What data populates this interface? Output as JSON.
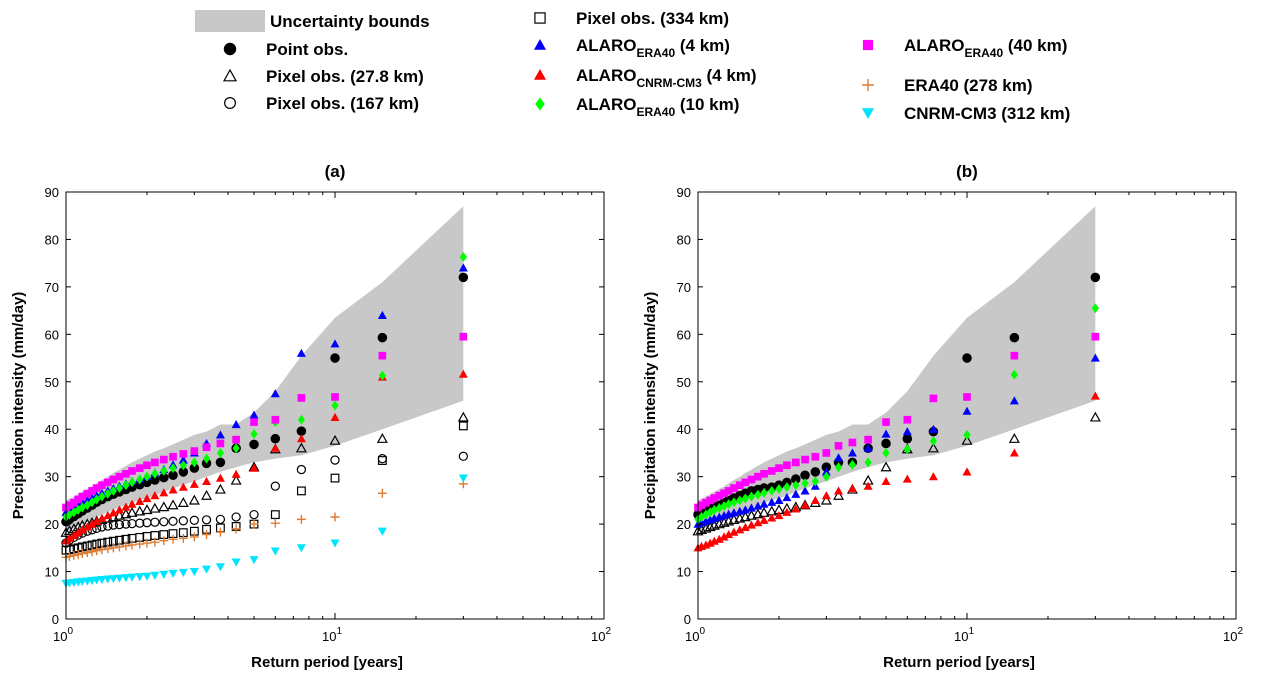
{
  "legend": {
    "entries": [
      {
        "key": "uncertainty",
        "label": "Uncertainty bounds",
        "marker": "band",
        "color": "#c8c8c8"
      },
      {
        "key": "point_obs",
        "label": "Point obs.",
        "marker": "circle-filled",
        "color": "#000000"
      },
      {
        "key": "pixel_27",
        "label": "Pixel obs. (27.8 km)",
        "marker": "triangle-open",
        "color": "#000000"
      },
      {
        "key": "pixel_167",
        "label": "Pixel obs. (167 km)",
        "marker": "circle-open",
        "color": "#000000"
      },
      {
        "key": "pixel_334",
        "label": "Pixel obs. (334 km)",
        "marker": "square-open",
        "color": "#000000"
      },
      {
        "key": "alaro_era40_4",
        "base": "ALARO",
        "sub": "ERA40",
        "suffix": " (4 km)",
        "marker": "triangle-filled",
        "color": "#0000ff"
      },
      {
        "key": "alaro_cnrm_4",
        "base": "ALARO",
        "sub": "CNRM-CM3",
        "suffix": " (4 km)",
        "marker": "triangle-filled",
        "color": "#ff0000"
      },
      {
        "key": "alaro_era40_10",
        "base": "ALARO",
        "sub": "ERA40",
        "suffix": " (10 km)",
        "marker": "diamond-filled",
        "color": "#00ff00"
      },
      {
        "key": "alaro_era40_40",
        "base": "ALARO",
        "sub": "ERA40",
        "suffix": " (40 km)",
        "marker": "square-filled",
        "color": "#ff00ff"
      },
      {
        "key": "era40_278",
        "label": "ERA40 (278 km)",
        "marker": "plus",
        "color": "#e07b30"
      },
      {
        "key": "cnrm_312",
        "label": "CNRM-CM3 (312 km)",
        "marker": "triangle-down-filled",
        "color": "#00e5ff"
      }
    ]
  },
  "chart_data": [
    {
      "type": "scatter",
      "title": "(a)",
      "xlabel": "Return period [years]",
      "ylabel": "Precipitation intensity (mm/day)",
      "xscale": "log",
      "xlim": [
        1,
        100
      ],
      "ylim": [
        0,
        90
      ],
      "x_ticks": [
        "10^0",
        "10^1",
        "10^2"
      ],
      "y_ticks": [
        0,
        10,
        20,
        30,
        40,
        50,
        60,
        70,
        80,
        90
      ],
      "grid": false,
      "x": [
        1.0,
        1.03,
        1.07,
        1.11,
        1.15,
        1.2,
        1.25,
        1.3,
        1.36,
        1.43,
        1.5,
        1.58,
        1.67,
        1.76,
        1.88,
        2.0,
        2.14,
        2.31,
        2.5,
        2.73,
        3.0,
        3.33,
        3.75,
        4.29,
        5.0,
        6.0,
        7.5,
        10.0,
        15.0,
        30.0
      ],
      "band": {
        "lower": [
          18.5,
          18.8,
          19.2,
          19.6,
          20.0,
          20.5,
          21.0,
          21.5,
          22.0,
          22.5,
          23.0,
          23.5,
          24.0,
          24.5,
          25.0,
          25.5,
          26.0,
          26.8,
          27.5,
          28.3,
          29.0,
          30.0,
          31.0,
          32.0,
          33.0,
          33.8,
          34.5,
          36.5,
          40.0,
          46.0
        ],
        "upper": [
          25.0,
          25.4,
          25.8,
          26.3,
          26.8,
          27.4,
          28.0,
          28.6,
          29.3,
          30.0,
          30.8,
          31.5,
          32.3,
          33.0,
          33.8,
          34.5,
          35.3,
          36.0,
          36.8,
          37.8,
          38.8,
          39.5,
          41.0,
          41.0,
          43.5,
          48.0,
          55.5,
          63.5,
          71.0,
          87.0
        ]
      },
      "series": [
        {
          "key": "point_obs",
          "name": "Point obs.",
          "values": [
            20.5,
            21.0,
            21.6,
            22.2,
            22.8,
            23.4,
            24.0,
            24.6,
            25.2,
            25.8,
            26.3,
            26.8,
            27.3,
            27.8,
            28.3,
            28.8,
            29.3,
            29.8,
            30.3,
            31.0,
            31.8,
            32.8,
            33.0,
            36.0,
            36.8,
            38.0,
            39.6,
            55.0,
            59.3,
            72.0
          ]
        },
        {
          "key": "pixel_27",
          "name": "Pixel obs. (27.8 km)",
          "values": [
            18.2,
            18.6,
            19.0,
            19.4,
            19.7,
            20.0,
            20.3,
            20.6,
            20.9,
            21.2,
            21.5,
            21.8,
            22.1,
            22.4,
            22.7,
            23.0,
            23.3,
            23.6,
            24.0,
            24.5,
            25.0,
            26.0,
            27.3,
            29.2,
            32.0,
            35.8,
            36.0,
            37.6,
            38.0,
            42.5
          ]
        },
        {
          "key": "pixel_167",
          "name": "Pixel obs. (167 km)",
          "values": [
            16.0,
            16.6,
            17.2,
            17.7,
            18.1,
            18.5,
            18.8,
            19.1,
            19.4,
            19.6,
            19.8,
            19.9,
            20.0,
            20.1,
            20.2,
            20.3,
            20.4,
            20.5,
            20.6,
            20.7,
            20.8,
            20.9,
            21.0,
            21.5,
            22.0,
            28.0,
            31.5,
            33.5,
            33.8,
            34.3
          ]
        },
        {
          "key": "pixel_334",
          "name": "Pixel obs. (334 km)",
          "values": [
            14.5,
            14.6,
            14.8,
            15.0,
            15.2,
            15.4,
            15.6,
            15.8,
            16.0,
            16.2,
            16.4,
            16.6,
            16.8,
            17.0,
            17.2,
            17.4,
            17.6,
            17.8,
            18.0,
            18.2,
            18.5,
            18.9,
            19.2,
            19.5,
            20.0,
            22.0,
            27.0,
            29.7,
            33.4,
            40.7
          ]
        },
        {
          "key": "alaro_era40_4",
          "name": "ALARO ERA40 (4 km)",
          "values": [
            22.5,
            23.0,
            23.5,
            24.0,
            24.5,
            25.0,
            25.5,
            26.0,
            26.5,
            27.0,
            27.5,
            28.0,
            28.5,
            29.0,
            29.5,
            30.0,
            30.8,
            31.5,
            32.5,
            33.5,
            35.0,
            37.0,
            38.8,
            41.0,
            43.0,
            47.5,
            56.0,
            58.0,
            64.0,
            74.0
          ]
        },
        {
          "key": "alaro_cnrm_4",
          "name": "ALARO CNRM-CM3 (4 km)",
          "values": [
            16.5,
            17.0,
            17.6,
            18.2,
            18.8,
            19.4,
            20.0,
            20.6,
            21.2,
            21.8,
            22.4,
            23.0,
            23.6,
            24.2,
            24.8,
            25.4,
            26.0,
            26.6,
            27.2,
            27.8,
            28.4,
            29.0,
            29.7,
            30.5,
            31.8,
            36.0,
            38.0,
            42.5,
            51.0,
            51.6
          ]
        },
        {
          "key": "alaro_era40_10",
          "name": "ALARO ERA40 (10 km)",
          "values": [
            21.5,
            22.0,
            22.5,
            23.0,
            23.5,
            24.0,
            24.6,
            25.2,
            25.8,
            26.4,
            27.0,
            27.6,
            28.2,
            28.8,
            29.4,
            30.0,
            30.6,
            31.2,
            31.8,
            32.4,
            33.0,
            33.8,
            35.0,
            36.0,
            39.0,
            41.5,
            42.0,
            45.0,
            51.3,
            76.3
          ]
        },
        {
          "key": "alaro_era40_40",
          "name": "ALARO ERA40 (40 km)",
          "values": [
            23.5,
            24.0,
            24.5,
            25.2,
            25.8,
            26.4,
            27.0,
            27.6,
            28.2,
            28.8,
            29.4,
            30.0,
            30.6,
            31.2,
            31.8,
            32.4,
            33.0,
            33.6,
            34.2,
            34.8,
            35.4,
            36.2,
            37.0,
            37.8,
            41.5,
            42.0,
            46.6,
            46.8,
            55.5,
            59.5
          ]
        },
        {
          "key": "era40_278",
          "name": "ERA40 (278 km)",
          "values": [
            13.0,
            13.2,
            13.4,
            13.6,
            13.8,
            14.0,
            14.2,
            14.4,
            14.6,
            14.8,
            15.0,
            15.2,
            15.4,
            15.6,
            15.8,
            16.0,
            16.2,
            16.5,
            16.8,
            17.0,
            17.3,
            17.8,
            18.3,
            19.0,
            20.0,
            20.2,
            21.0,
            21.5,
            26.5,
            28.5
          ]
        },
        {
          "key": "cnrm_312",
          "name": "CNRM-CM3 (312 km)",
          "values": [
            7.5,
            7.6,
            7.7,
            7.8,
            7.9,
            8.0,
            8.1,
            8.2,
            8.3,
            8.4,
            8.5,
            8.6,
            8.7,
            8.8,
            8.9,
            9.0,
            9.2,
            9.4,
            9.6,
            9.8,
            10.0,
            10.5,
            11.0,
            12.0,
            12.5,
            14.3,
            15.0,
            16.0,
            18.5,
            29.7
          ]
        }
      ]
    },
    {
      "type": "scatter",
      "title": "(b)",
      "xlabel": "Return period [years]",
      "ylabel": "Precipitation intensity (mm/day)",
      "xscale": "log",
      "xlim": [
        1,
        100
      ],
      "ylim": [
        0,
        90
      ],
      "x_ticks": [
        "10^0",
        "10^1",
        "10^2"
      ],
      "y_ticks": [
        0,
        10,
        20,
        30,
        40,
        50,
        60,
        70,
        80,
        90
      ],
      "grid": false,
      "x": [
        1.0,
        1.03,
        1.07,
        1.11,
        1.15,
        1.2,
        1.25,
        1.3,
        1.36,
        1.43,
        1.5,
        1.58,
        1.67,
        1.76,
        1.88,
        2.0,
        2.14,
        2.31,
        2.5,
        2.73,
        3.0,
        3.33,
        3.75,
        4.29,
        5.0,
        6.0,
        7.5,
        10.0,
        15.0,
        30.0
      ],
      "band": {
        "lower": [
          18.5,
          18.8,
          19.2,
          19.6,
          20.0,
          20.5,
          21.0,
          21.5,
          22.0,
          22.5,
          23.0,
          23.5,
          24.0,
          24.5,
          25.0,
          25.5,
          26.0,
          26.8,
          27.5,
          28.3,
          29.0,
          30.0,
          31.0,
          32.0,
          33.0,
          33.8,
          34.5,
          36.5,
          40.0,
          46.0
        ],
        "upper": [
          25.0,
          25.4,
          25.8,
          26.3,
          26.8,
          27.4,
          28.0,
          28.6,
          29.3,
          30.0,
          30.8,
          31.5,
          32.3,
          33.0,
          33.8,
          34.5,
          35.3,
          36.0,
          36.8,
          37.8,
          38.8,
          39.5,
          41.0,
          41.0,
          43.5,
          48.0,
          55.5,
          63.5,
          71.0,
          87.0
        ]
      },
      "series": [
        {
          "key": "point_obs",
          "name": "Point obs.",
          "values": [
            22.0,
            22.4,
            22.8,
            23.2,
            23.6,
            24.0,
            24.5,
            25.0,
            25.5,
            26.0,
            26.5,
            27.0,
            27.3,
            27.6,
            27.8,
            28.2,
            28.8,
            29.5,
            30.3,
            31.0,
            32.0,
            33.0,
            33.0,
            36.0,
            37.0,
            38.0,
            39.5,
            55.0,
            59.3,
            72.0
          ]
        },
        {
          "key": "pixel_27",
          "name": "Pixel obs. (27.8 km)",
          "values": [
            18.5,
            18.8,
            19.1,
            19.4,
            19.7,
            20.0,
            20.3,
            20.6,
            20.9,
            21.2,
            21.5,
            21.8,
            22.1,
            22.4,
            22.7,
            23.0,
            23.3,
            23.6,
            24.0,
            24.5,
            25.0,
            26.0,
            27.3,
            29.2,
            32.0,
            35.8,
            36.0,
            37.6,
            38.0,
            42.5
          ]
        },
        {
          "key": "alaro_era40_4",
          "name": "ALARO ERA40 (4 km)",
          "values": [
            20.0,
            20.3,
            20.6,
            20.9,
            21.2,
            21.5,
            21.8,
            22.1,
            22.4,
            22.7,
            23.0,
            23.4,
            23.8,
            24.2,
            24.6,
            25.0,
            25.6,
            26.3,
            27.0,
            28.0,
            31.0,
            34.0,
            35.0,
            36.0,
            39.0,
            39.5,
            40.0,
            43.8,
            46.0,
            55.0
          ]
        },
        {
          "key": "alaro_cnrm_4",
          "name": "ALARO CNRM-CM3 (4 km)",
          "values": [
            15.0,
            15.3,
            15.6,
            16.0,
            16.4,
            16.8,
            17.3,
            17.8,
            18.3,
            18.8,
            19.3,
            19.8,
            20.3,
            20.8,
            21.3,
            21.8,
            22.5,
            23.2,
            24.0,
            25.0,
            26.0,
            27.0,
            27.5,
            28.0,
            29.0,
            29.5,
            30.0,
            31.0,
            35.0,
            47.0
          ]
        },
        {
          "key": "alaro_era40_10",
          "name": "ALARO ERA40 (10 km)",
          "values": [
            21.0,
            21.5,
            22.0,
            22.5,
            23.0,
            23.4,
            23.8,
            24.2,
            24.6,
            25.0,
            25.4,
            25.8,
            26.2,
            26.6,
            27.0,
            27.4,
            27.8,
            28.2,
            28.6,
            29.0,
            30.0,
            32.0,
            32.5,
            33.0,
            35.0,
            35.8,
            37.5,
            38.8,
            51.5,
            65.5
          ]
        },
        {
          "key": "alaro_era40_40",
          "name": "ALARO ERA40 (40 km)",
          "values": [
            23.5,
            24.0,
            24.5,
            25.0,
            25.5,
            26.0,
            26.5,
            27.0,
            27.6,
            28.2,
            28.8,
            29.4,
            30.0,
            30.6,
            31.2,
            31.8,
            32.4,
            33.0,
            33.6,
            34.2,
            35.0,
            36.5,
            37.2,
            37.8,
            41.5,
            42.0,
            46.5,
            46.8,
            55.5,
            59.5
          ]
        }
      ]
    }
  ]
}
